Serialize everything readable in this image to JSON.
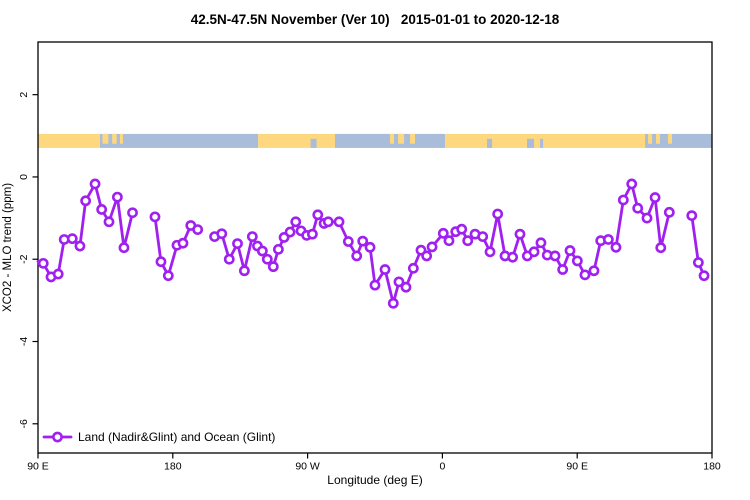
{
  "title": "42.5N-47.5N November (Ver 10)   2015-01-01 to 2020-12-18",
  "chart_data": {
    "type": "line",
    "title": "42.5N-47.5N November (Ver 10)   2015-01-01 to 2020-12-18",
    "xlabel": "Longitude (deg E)",
    "ylabel": "XCO2 - MLO trend (ppm)",
    "xlim": [
      90,
      540
    ],
    "ylim": [
      -6.71,
      3.28
    ],
    "grid": false,
    "x_ticks": [
      {
        "pos": 90,
        "label": "90 E"
      },
      {
        "pos": 180,
        "label": "180"
      },
      {
        "pos": 270,
        "label": "90 W"
      },
      {
        "pos": 360,
        "label": "0"
      },
      {
        "pos": 450,
        "label": "90 E"
      },
      {
        "pos": 540,
        "label": "180"
      }
    ],
    "y_ticks": [
      {
        "pos": 2,
        "label": "2"
      },
      {
        "pos": 0,
        "label": "0"
      },
      {
        "pos": -2,
        "label": "-2"
      },
      {
        "pos": -4,
        "label": "-4"
      },
      {
        "pos": -6,
        "label": "-6"
      }
    ],
    "legend": {
      "label": "Land (Nadir&Glint) and Ocean (Glint)",
      "position": "bottom-left",
      "marker": "open-circle-on-line"
    },
    "series": [
      {
        "name": "Land (Nadir&Glint) and Ocean (Glint)",
        "color": "#A020F0",
        "marker": "open-circle",
        "edge_stub": [
          [
            90,
            -2.05
          ],
          [
            93.5,
            -2.1
          ]
        ],
        "segments": [
          [
            [
              93.5,
              -2.1
            ],
            [
              98.7,
              -2.43
            ],
            [
              103.5,
              -2.36
            ],
            [
              107.5,
              -1.52
            ],
            [
              112.9,
              -1.5
            ],
            [
              118.0,
              -1.68
            ],
            [
              121.8,
              -0.58
            ],
            [
              128.1,
              -0.17
            ],
            [
              132.5,
              -0.79
            ],
            [
              137.4,
              -1.09
            ],
            [
              143.0,
              -0.49
            ],
            [
              147.4,
              -1.72
            ],
            [
              153.1,
              -0.87
            ]
          ],
          [
            [
              168.1,
              -0.97
            ],
            [
              172.1,
              -2.06
            ],
            [
              177.0,
              -2.4
            ],
            [
              182.8,
              -1.66
            ],
            [
              186.8,
              -1.61
            ],
            [
              192.0,
              -1.18
            ],
            [
              196.6,
              -1.28
            ]
          ],
          [
            [
              207.9,
              -1.45
            ],
            [
              212.7,
              -1.38
            ],
            [
              217.7,
              -2.0
            ],
            [
              223.2,
              -1.62
            ],
            [
              227.8,
              -2.28
            ],
            [
              233.1,
              -1.45
            ],
            [
              236.5,
              -1.68
            ],
            [
              239.8,
              -1.8
            ],
            [
              243.1,
              -2.0
            ],
            [
              247.1,
              -2.18
            ],
            [
              250.5,
              -1.76
            ],
            [
              254.3,
              -1.47
            ],
            [
              258.3,
              -1.34
            ],
            [
              262.1,
              -1.09
            ],
            [
              265.6,
              -1.31
            ],
            [
              269.4,
              -1.42
            ],
            [
              273.2,
              -1.39
            ],
            [
              276.8,
              -0.92
            ],
            [
              281.0,
              -1.13
            ],
            [
              283.8,
              -1.09
            ],
            [
              291.0,
              -1.09
            ],
            [
              297.2,
              -1.57
            ],
            [
              302.8,
              -1.92
            ],
            [
              306.8,
              -1.56
            ],
            [
              311.7,
              -1.71
            ],
            [
              315.0,
              -2.63
            ],
            [
              321.7,
              -2.25
            ],
            [
              327.2,
              -3.07
            ],
            [
              331.0,
              -2.55
            ],
            [
              335.7,
              -2.68
            ],
            [
              340.6,
              -2.22
            ],
            [
              345.7,
              -1.78
            ],
            [
              349.5,
              -1.92
            ],
            [
              353.1,
              -1.7
            ],
            [
              360.6,
              -1.37
            ],
            [
              364.4,
              -1.55
            ],
            [
              368.9,
              -1.33
            ],
            [
              372.9,
              -1.27
            ],
            [
              376.9,
              -1.55
            ],
            [
              381.8,
              -1.39
            ],
            [
              386.9,
              -1.45
            ],
            [
              391.8,
              -1.82
            ],
            [
              396.9,
              -0.9
            ],
            [
              401.8,
              -1.92
            ],
            [
              406.9,
              -1.95
            ],
            [
              411.8,
              -1.39
            ],
            [
              416.7,
              -1.92
            ],
            [
              421.2,
              -1.82
            ],
            [
              425.8,
              -1.6
            ],
            [
              430.0,
              -1.9
            ],
            [
              435.2,
              -1.92
            ],
            [
              440.3,
              -2.25
            ],
            [
              445.2,
              -1.79
            ],
            [
              450.1,
              -2.04
            ],
            [
              455.2,
              -2.38
            ],
            [
              461.2,
              -2.28
            ],
            [
              465.7,
              -1.55
            ],
            [
              470.8,
              -1.52
            ],
            [
              475.9,
              -1.71
            ],
            [
              480.8,
              -0.56
            ],
            [
              486.4,
              -0.17
            ],
            [
              490.4,
              -0.76
            ],
            [
              496.6,
              -1.0
            ],
            [
              502.0,
              -0.5
            ],
            [
              505.8,
              -1.72
            ],
            [
              511.5,
              -0.86
            ]
          ],
          [
            [
              526.5,
              -0.94
            ],
            [
              530.9,
              -2.08
            ],
            [
              534.7,
              -2.4
            ]
          ]
        ]
      }
    ],
    "land_ocean_strip": {
      "value_range": [
        0.705,
        1.046
      ],
      "land_color": "#FDD87F",
      "ocean_color": "#A9BCD9",
      "base_segments": [
        {
          "from": 90,
          "to": 131.4,
          "type": "land"
        },
        {
          "from": 131.4,
          "to": 237,
          "type": "ocean"
        },
        {
          "from": 237,
          "to": 288.3,
          "type": "land"
        },
        {
          "from": 288.3,
          "to": 361.8,
          "type": "ocean"
        },
        {
          "from": 361.8,
          "to": 495.3,
          "type": "land"
        },
        {
          "from": 495.3,
          "to": 540,
          "type": "ocean"
        }
      ],
      "patches": [
        {
          "from": 133.0,
          "to": 137.0,
          "type": "land"
        },
        {
          "from": 139.5,
          "to": 142.5,
          "type": "land"
        },
        {
          "from": 144.7,
          "to": 146.7,
          "type": "land"
        },
        {
          "from": 272.0,
          "to": 276.0,
          "type": "ocean"
        },
        {
          "from": 325.0,
          "to": 327.7,
          "type": "land"
        },
        {
          "from": 330.4,
          "to": 334.4,
          "type": "land"
        },
        {
          "from": 338.4,
          "to": 341.7,
          "type": "land"
        },
        {
          "from": 389.8,
          "to": 393.2,
          "type": "ocean"
        },
        {
          "from": 416.5,
          "to": 421.2,
          "type": "ocean"
        },
        {
          "from": 425.2,
          "to": 427.2,
          "type": "ocean"
        },
        {
          "from": 497.3,
          "to": 500.0,
          "type": "land"
        },
        {
          "from": 502.6,
          "to": 505.3,
          "type": "land"
        },
        {
          "from": 510.6,
          "to": 513.3,
          "type": "land"
        }
      ]
    }
  }
}
